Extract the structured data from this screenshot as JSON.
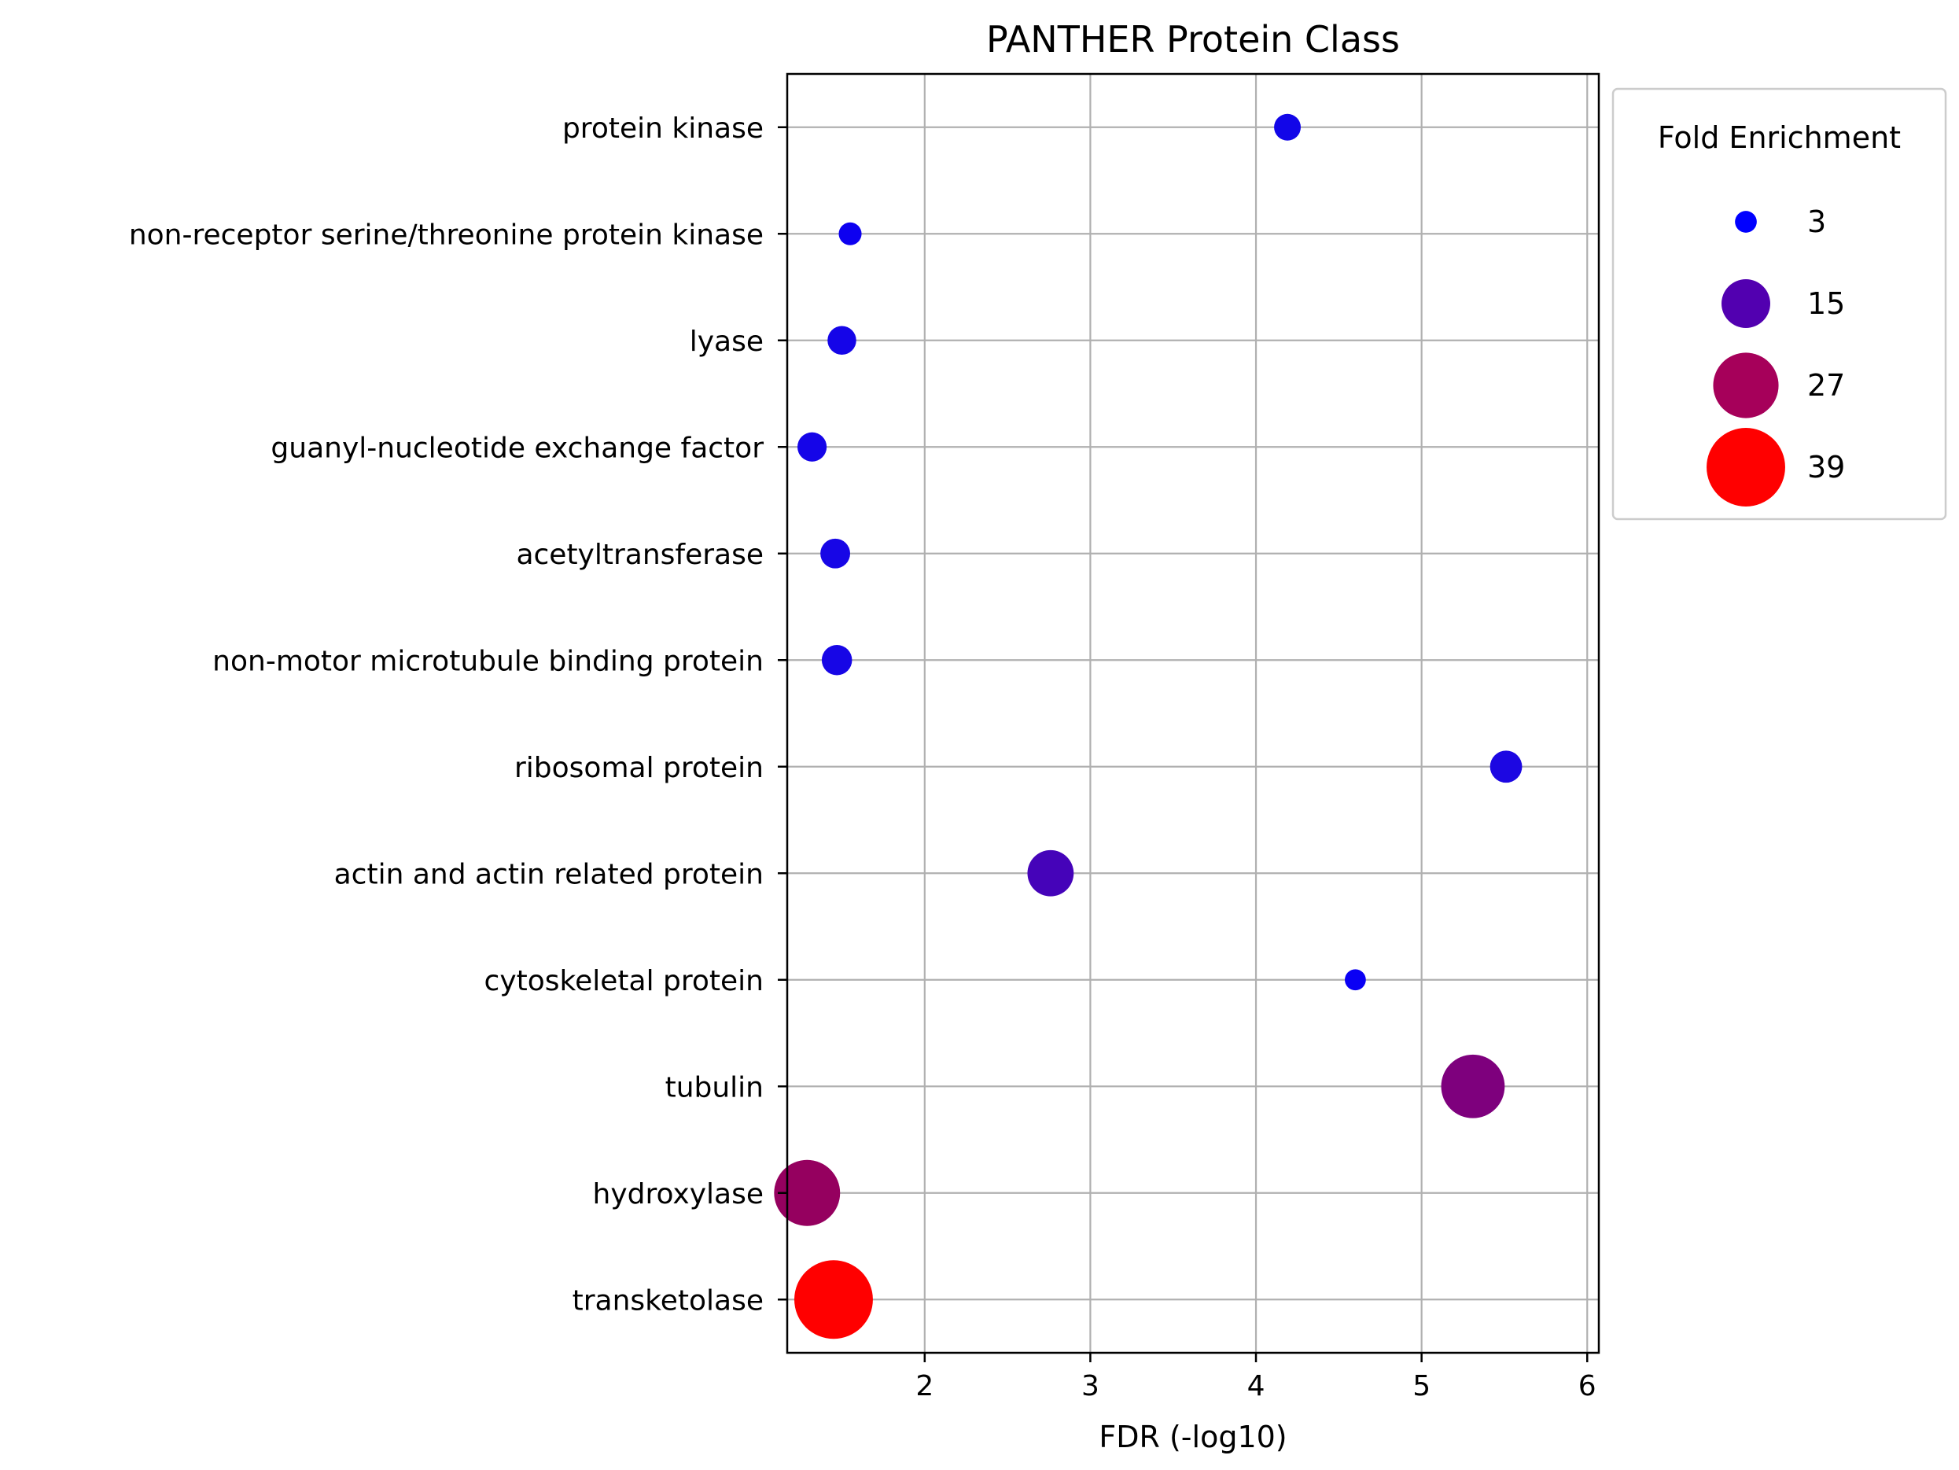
{
  "chart_data": {
    "type": "scatter",
    "title": "PANTHER Protein Class",
    "xlabel": "FDR (-log10)",
    "ylabel": "",
    "xlim": [
      1.17,
      6.07
    ],
    "xticks": [
      2,
      3,
      4,
      5,
      6
    ],
    "xtick_labels": [
      "2",
      "3",
      "4",
      "5",
      "6"
    ],
    "grid": true,
    "categories": [
      "protein kinase",
      "non-receptor serine/threonine protein kinase",
      "lyase",
      "guanyl-nucleotide exchange factor",
      "acetyltransferase",
      "non-motor microtubule binding protein",
      "ribosomal protein",
      "actin and actin related protein",
      "cytoskeletal protein",
      "tubulin",
      "hydroxylase",
      "transketolase"
    ],
    "points": [
      {
        "category": "protein kinase",
        "x": 4.19,
        "fold_enrichment": 4.5,
        "color": "#1206e8"
      },
      {
        "category": "non-receptor serine/threonine protein kinase",
        "x": 1.55,
        "fold_enrichment": 3.3,
        "color": "#0d00f0"
      },
      {
        "category": "lyase",
        "x": 1.5,
        "fold_enrichment": 5.2,
        "color": "#1505e8"
      },
      {
        "category": "guanyl-nucleotide exchange factor",
        "x": 1.32,
        "fold_enrichment": 5.4,
        "color": "#1505e8"
      },
      {
        "category": "acetyltransferase",
        "x": 1.46,
        "fold_enrichment": 5.6,
        "color": "#1706e6"
      },
      {
        "category": "non-motor microtubule binding protein",
        "x": 1.47,
        "fold_enrichment": 5.8,
        "color": "#1706e6"
      },
      {
        "category": "ribosomal protein",
        "x": 5.51,
        "fold_enrichment": 6.5,
        "color": "#1c07e2"
      },
      {
        "category": "actin and actin related protein",
        "x": 2.76,
        "fold_enrichment": 13.5,
        "color": "#4503b9"
      },
      {
        "category": "cytoskeletal protein",
        "x": 4.6,
        "fold_enrichment": 2.8,
        "color": "#0a00f4"
      },
      {
        "category": "tubulin",
        "x": 5.31,
        "fold_enrichment": 25.5,
        "color": "#7e007d"
      },
      {
        "category": "hydroxylase",
        "x": 1.29,
        "fold_enrichment": 27.5,
        "color": "#95005f"
      },
      {
        "category": "transketolase",
        "x": 1.45,
        "fold_enrichment": 39,
        "color": "#ff0000"
      }
    ],
    "legend": {
      "title": "Fold Enrichment",
      "placement": "outside-right-top",
      "entries": [
        {
          "label": "3",
          "value": 3,
          "color": "#0000ff"
        },
        {
          "label": "15",
          "value": 15,
          "color": "#5200b0"
        },
        {
          "label": "27",
          "value": 27,
          "color": "#a6005a"
        },
        {
          "label": "39",
          "value": 39,
          "color": "#ff0000"
        }
      ]
    }
  }
}
